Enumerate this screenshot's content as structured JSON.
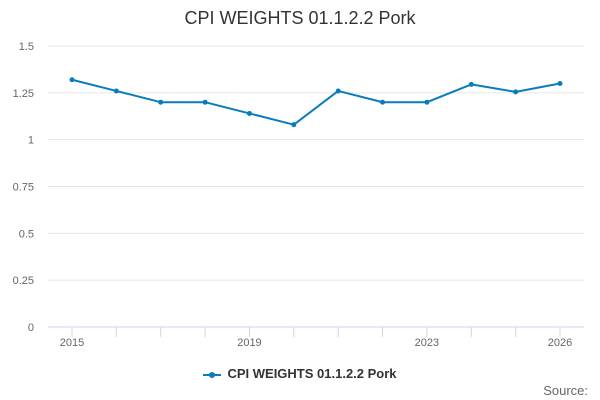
{
  "chart_data": {
    "type": "line",
    "title": "CPI WEIGHTS 01.1.2.2 Pork",
    "xlabel": "",
    "ylabel": "",
    "x": [
      2015,
      2016,
      2017,
      2018,
      2019,
      2020,
      2021,
      2022,
      2023,
      2024,
      2025,
      2026
    ],
    "series": [
      {
        "name": "CPI WEIGHTS 01.1.2.2 Pork",
        "values": [
          1.32,
          1.26,
          1.2,
          1.2,
          1.14,
          1.08,
          1.26,
          1.2,
          1.2,
          1.295,
          1.255,
          1.3
        ]
      }
    ],
    "ylim": [
      0,
      1.5
    ],
    "yticks": [
      "0",
      "0.25",
      "0.5",
      "0.75",
      "1",
      "1.25",
      "1.5"
    ],
    "xticks_labeled": [
      "2015",
      "2019",
      "2023",
      "2026"
    ],
    "grid": "horizontal",
    "legend_position": "bottom-center",
    "color": "#0a7cbc"
  },
  "credits": "Source:"
}
